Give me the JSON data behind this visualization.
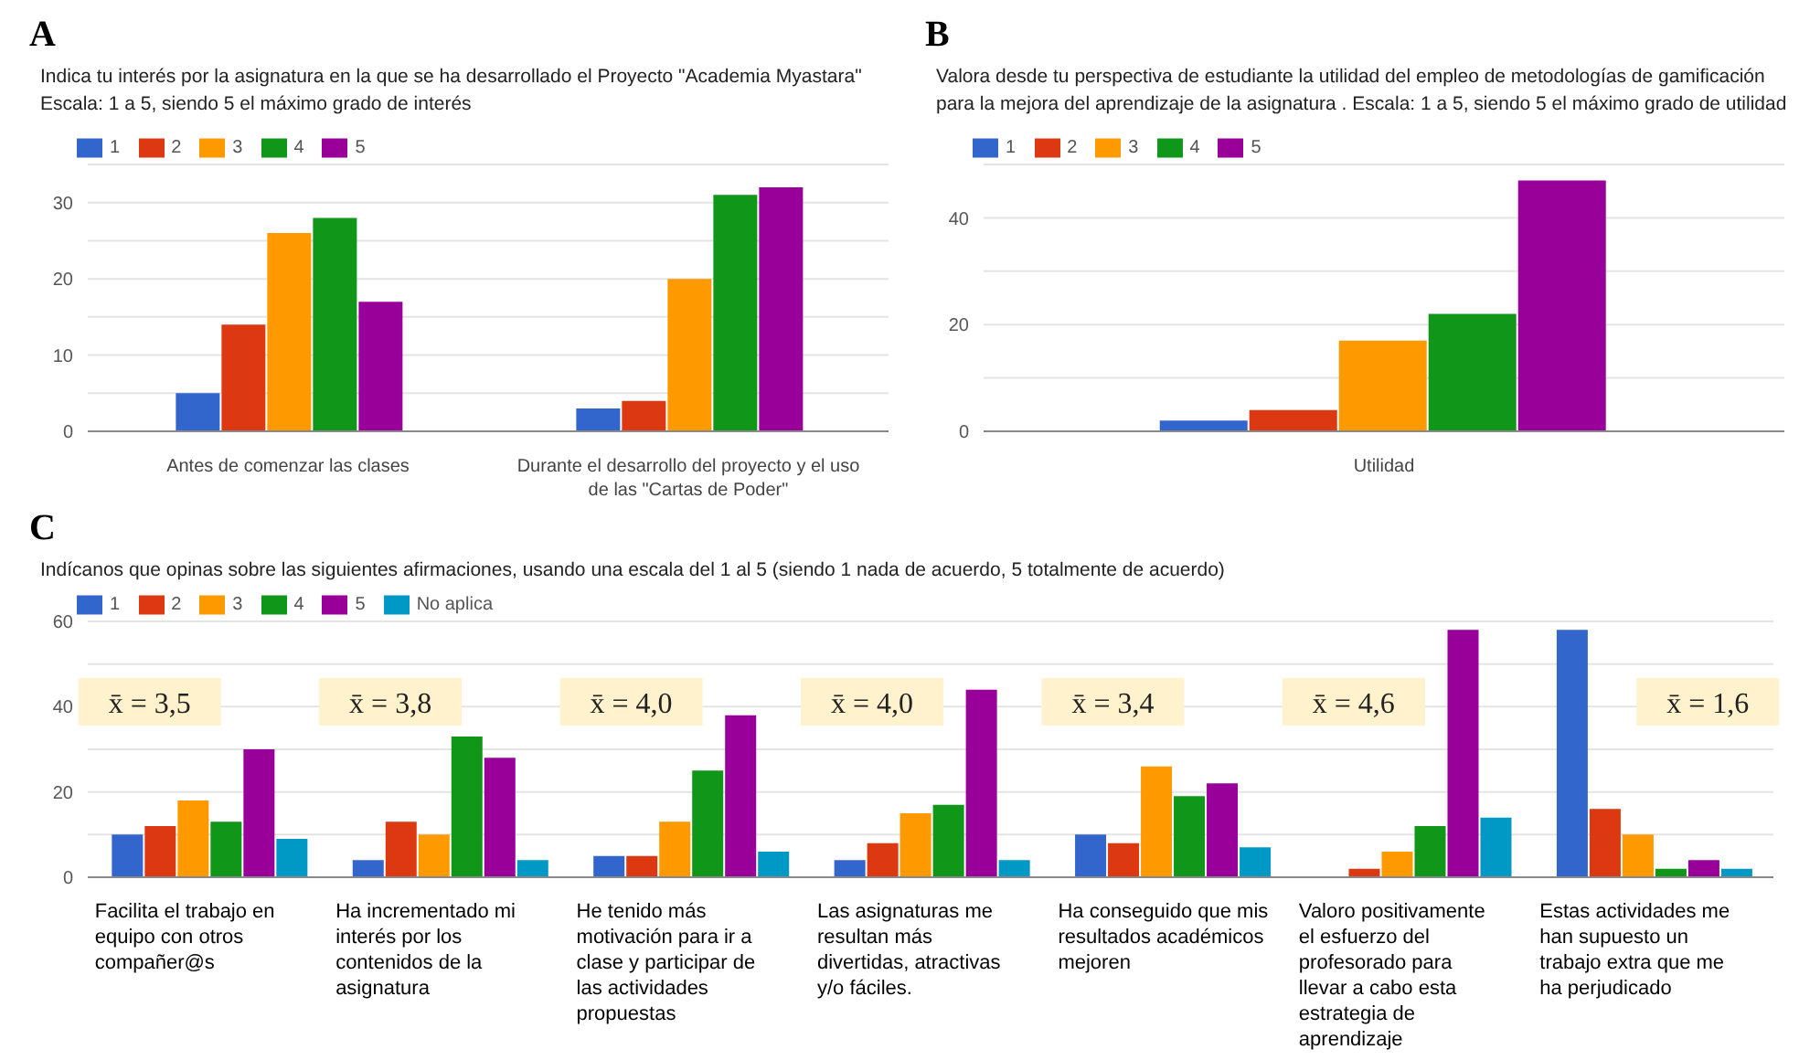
{
  "chart_data": [
    {
      "type": "bar",
      "title": "Indica tu interés por la asignatura en la que se ha desarrollado el Proyecto \"Academia Myastara\" Escala: 1 a 5, siendo 5 el máximo grado de interés",
      "annotations": [
        "A"
      ],
      "categories": [
        "Antes de comenzar las clases",
        "Durante el desarrollo del proyecto y el uso de las \"Cartas de Poder\""
      ],
      "series": [
        {
          "name": "1",
          "color": "#3366cc",
          "values": [
            5,
            3
          ]
        },
        {
          "name": "2",
          "color": "#dc3912",
          "values": [
            14,
            4
          ]
        },
        {
          "name": "3",
          "color": "#ff9900",
          "values": [
            26,
            20
          ]
        },
        {
          "name": "4",
          "color": "#109618",
          "values": [
            28,
            31
          ]
        },
        {
          "name": "5",
          "color": "#990099",
          "values": [
            17,
            32
          ]
        }
      ],
      "ylim": [
        0,
        35
      ],
      "yticks": [
        0,
        {
          "value": 5,
          "label": null
        },
        10,
        {
          "value": 15,
          "label": null
        },
        20,
        {
          "value": 25,
          "label": null
        },
        30,
        {
          "value": 35,
          "label": null
        }
      ],
      "grid": "y",
      "legend": "top left"
    },
    {
      "type": "bar",
      "title": "Valora desde tu perspectiva de estudiante la utilidad del empleo de metodologías de gamificación para la mejora del aprendizaje de la asignatura . Escala: 1 a 5, siendo 5 el máximo grado de utilidad",
      "annotations": [
        "B"
      ],
      "categories": [
        "Utilidad"
      ],
      "series": [
        {
          "name": "1",
          "color": "#3366cc",
          "values": [
            2
          ]
        },
        {
          "name": "2",
          "color": "#dc3912",
          "values": [
            4
          ]
        },
        {
          "name": "3",
          "color": "#ff9900",
          "values": [
            17
          ]
        },
        {
          "name": "4",
          "color": "#109618",
          "values": [
            22
          ]
        },
        {
          "name": "5",
          "color": "#990099",
          "values": [
            47
          ]
        }
      ],
      "ylim": [
        0,
        50
      ],
      "yticks": [
        0,
        {
          "value": 10,
          "label": null
        },
        20,
        {
          "value": 30,
          "label": null
        },
        40,
        {
          "value": 50,
          "label": null
        }
      ],
      "grid": "y",
      "legend": "top left"
    },
    {
      "type": "bar",
      "title": "Indícanos que opinas sobre las siguientes afirmaciones, usando una escala del 1 al 5 (siendo 1 nada de acuerdo, 5 totalmente de acuerdo)",
      "annotations": [
        "C",
        "x̄ = 3,5",
        "x̄ = 3,8",
        "x̄ = 4,0",
        "x̄ = 4,0",
        "x̄ = 3,4",
        "x̄ = 4,6",
        "x̄ = 1,6"
      ],
      "categories": [
        "Facilita el trabajo en equipo con otros compañer@s",
        "Ha incrementado mi interés por los contenidos de la asignatura",
        "He tenido más motivación para ir a clase y participar de las actividades propuestas",
        "Las asignaturas me resultan más divertidas, atractivas y/o fáciles.",
        "Ha conseguido que mis resultados académicos mejoren",
        "Valoro positivamente el esfuerzo del profesorado para llevar a cabo esta estrategia de aprendizaje",
        "Estas actividades me han supuesto un trabajo extra que me ha perjudicado"
      ],
      "series": [
        {
          "name": "1",
          "color": "#3366cc",
          "values": [
            10,
            4,
            5,
            4,
            10,
            0,
            58
          ]
        },
        {
          "name": "2",
          "color": "#dc3912",
          "values": [
            12,
            13,
            5,
            8,
            8,
            2,
            16
          ]
        },
        {
          "name": "3",
          "color": "#ff9900",
          "values": [
            18,
            10,
            13,
            15,
            26,
            6,
            10
          ]
        },
        {
          "name": "4",
          "color": "#109618",
          "values": [
            13,
            33,
            25,
            17,
            19,
            12,
            2
          ]
        },
        {
          "name": "5",
          "color": "#990099",
          "values": [
            30,
            28,
            38,
            44,
            22,
            58,
            4
          ]
        },
        {
          "name": "No aplica",
          "color": "#0099c6",
          "values": [
            9,
            4,
            6,
            4,
            7,
            14,
            2
          ]
        }
      ],
      "ylim": [
        0,
        60
      ],
      "yticks": [
        0,
        {
          "value": 10,
          "label": null
        },
        20,
        {
          "value": 30,
          "label": null
        },
        40,
        {
          "value": 50,
          "label": null
        },
        60
      ],
      "grid": "y",
      "legend": "top left"
    }
  ]
}
